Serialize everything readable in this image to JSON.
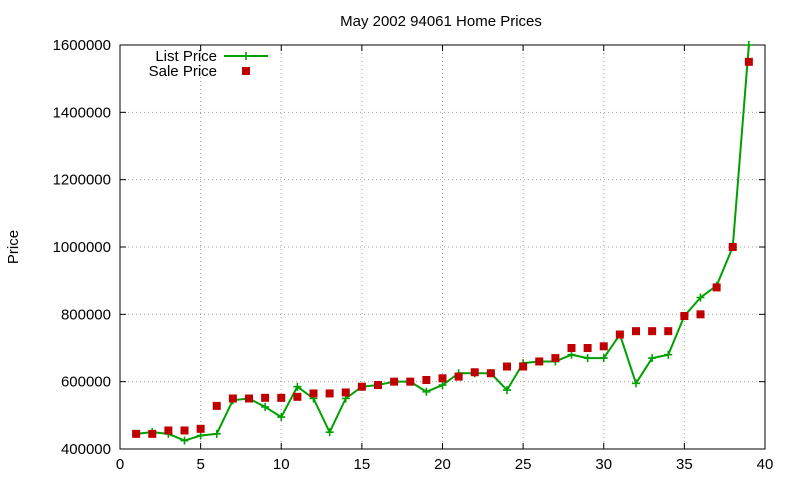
{
  "chart_data": {
    "type": "line",
    "title": "May 2002 94061 Home Prices",
    "ylabel": "Price",
    "xlabel": "",
    "xlim": [
      0,
      40
    ],
    "ylim": [
      400000,
      1600000
    ],
    "xticks": [
      0,
      5,
      10,
      15,
      20,
      25,
      30,
      35,
      40
    ],
    "yticks": [
      400000,
      600000,
      800000,
      1000000,
      1200000,
      1400000,
      1600000
    ],
    "grid": true,
    "legend_position": "top-left",
    "x": [
      1,
      2,
      3,
      4,
      5,
      6,
      7,
      8,
      9,
      10,
      11,
      12,
      13,
      14,
      15,
      16,
      17,
      18,
      19,
      20,
      21,
      22,
      23,
      24,
      25,
      26,
      27,
      28,
      29,
      30,
      31,
      32,
      33,
      34,
      35,
      36,
      37,
      38,
      39
    ],
    "series": [
      {
        "name": "List Price",
        "style": "linespoints",
        "color": "#00a000",
        "values": [
          445000,
          450000,
          445000,
          425000,
          440000,
          445000,
          545000,
          550000,
          525000,
          495000,
          585000,
          550000,
          450000,
          550000,
          585000,
          590000,
          600000,
          600000,
          570000,
          590000,
          625000,
          625000,
          625000,
          575000,
          655000,
          660000,
          660000,
          680000,
          670000,
          670000,
          740000,
          595000,
          670000,
          680000,
          795000,
          850000,
          885000,
          1000000,
          1600000
        ]
      },
      {
        "name": "Sale Price",
        "style": "points",
        "color": "#c00000",
        "values": [
          445000,
          445000,
          455000,
          455000,
          460000,
          528000,
          550000,
          550000,
          552000,
          552000,
          555000,
          565000,
          565000,
          568000,
          585000,
          590000,
          600000,
          600000,
          605000,
          610000,
          615000,
          628000,
          625000,
          645000,
          645000,
          660000,
          670000,
          700000,
          700000,
          705000,
          740000,
          750000,
          750000,
          750000,
          795000,
          800000,
          880000,
          1000000,
          1550000
        ]
      }
    ]
  }
}
